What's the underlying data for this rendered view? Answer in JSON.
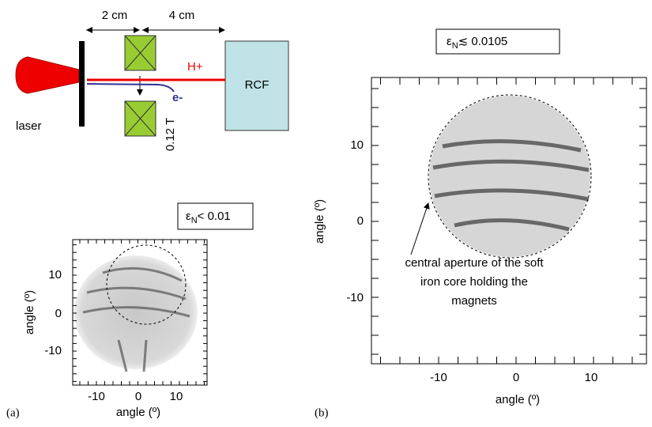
{
  "schematic": {
    "dim_left": "2 cm",
    "dim_right": "4 cm",
    "proton": "H+",
    "electron": "e-",
    "laser": "laser",
    "detector": "RCF",
    "field": "0.12 T"
  },
  "panel_a": {
    "label": "(a)",
    "emittance_symbol": "ε",
    "emittance_subscript": "N",
    "emittance_value": "< 0.01",
    "x_label": "angle (º)",
    "y_label": "angle (º)",
    "x_ticks": [
      "-10",
      "0",
      "10"
    ],
    "y_ticks": [
      "10",
      "0",
      "-10"
    ]
  },
  "panel_b": {
    "label": "(b)",
    "emittance_symbol": "ε",
    "emittance_subscript": "N",
    "emittance_value": "≲ 0.0105",
    "x_label": "angle (º)",
    "y_label": "angle (º)",
    "x_ticks": [
      "-10",
      "0",
      "10"
    ],
    "y_ticks": [
      "10",
      "0",
      "-10"
    ],
    "annotation": [
      "central aperture of the soft",
      "iron core holding the",
      "magnets"
    ]
  }
}
